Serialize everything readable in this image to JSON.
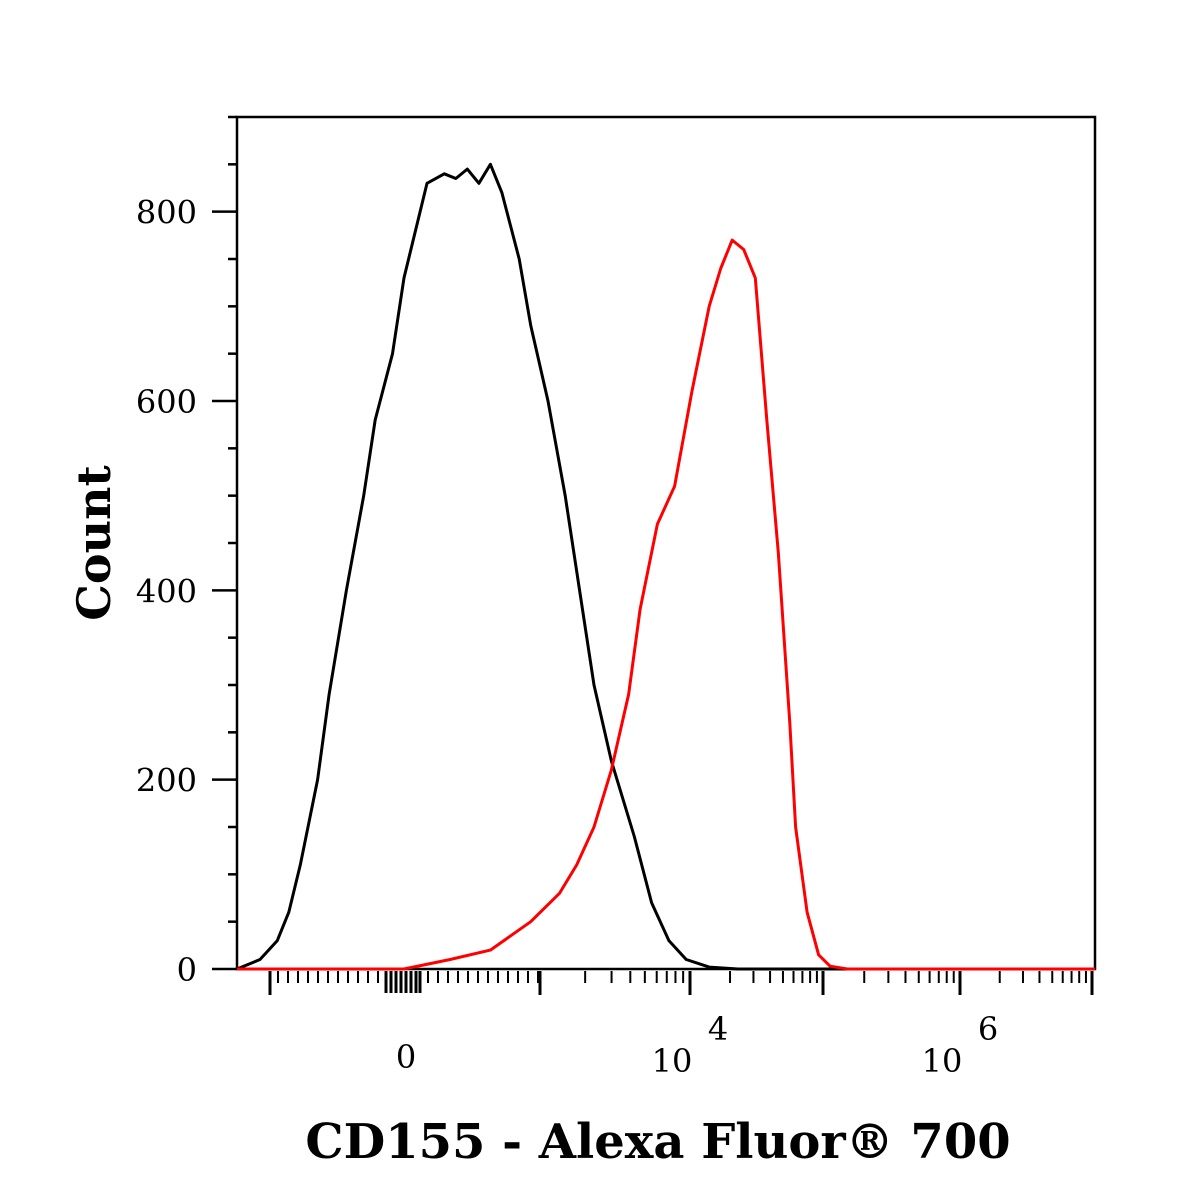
{
  "chart_data": {
    "type": "line",
    "title": "",
    "xlabel": "CD155 - Alexa Fluor® 700",
    "ylabel": "Count",
    "x_scale": "biexponential",
    "ylim": [
      0,
      900
    ],
    "y_ticks": [
      {
        "value": 0,
        "label": "0"
      },
      {
        "value": 200,
        "label": "200"
      },
      {
        "value": 400,
        "label": "400"
      },
      {
        "value": 600,
        "label": "600"
      },
      {
        "value": 800,
        "label": "800"
      }
    ],
    "x_ticks": [
      {
        "value": "0",
        "base": "0",
        "exp": ""
      },
      {
        "value": "10^4",
        "base": "10",
        "exp": "4"
      },
      {
        "value": "10^6",
        "base": "10",
        "exp": "6"
      }
    ],
    "grid": false,
    "legend": "none",
    "series": [
      {
        "color": "#000000",
        "points": [
          [
            -0.49,
            0
          ],
          [
            -0.45,
            10
          ],
          [
            -0.42,
            30
          ],
          [
            -0.4,
            60
          ],
          [
            -0.38,
            110
          ],
          [
            -0.35,
            200
          ],
          [
            -0.33,
            290
          ],
          [
            -0.3,
            400
          ],
          [
            -0.27,
            500
          ],
          [
            -0.25,
            580
          ],
          [
            -0.22,
            650
          ],
          [
            -0.2,
            730
          ],
          [
            -0.18,
            780
          ],
          [
            -0.16,
            830
          ],
          [
            -0.13,
            840
          ],
          [
            -0.11,
            835
          ],
          [
            -0.09,
            845
          ],
          [
            -0.07,
            830
          ],
          [
            -0.05,
            850
          ],
          [
            -0.03,
            820
          ],
          [
            0.0,
            750
          ],
          [
            0.02,
            680
          ],
          [
            0.05,
            600
          ],
          [
            0.08,
            500
          ],
          [
            0.1,
            420
          ],
          [
            0.13,
            300
          ],
          [
            0.16,
            220
          ],
          [
            0.2,
            140
          ],
          [
            0.23,
            70
          ],
          [
            0.26,
            30
          ],
          [
            0.29,
            10
          ],
          [
            0.33,
            2
          ],
          [
            0.38,
            0
          ],
          [
            1.0,
            0
          ]
        ]
      },
      {
        "color": "#ff0000",
        "points": [
          [
            -0.49,
            0
          ],
          [
            -0.2,
            0
          ],
          [
            -0.12,
            10
          ],
          [
            -0.05,
            20
          ],
          [
            0.02,
            50
          ],
          [
            0.07,
            80
          ],
          [
            0.1,
            110
          ],
          [
            0.13,
            150
          ],
          [
            0.16,
            210
          ],
          [
            0.19,
            290
          ],
          [
            0.21,
            380
          ],
          [
            0.24,
            470
          ],
          [
            0.27,
            510
          ],
          [
            0.3,
            610
          ],
          [
            0.33,
            700
          ],
          [
            0.35,
            740
          ],
          [
            0.37,
            770
          ],
          [
            0.39,
            760
          ],
          [
            0.41,
            730
          ],
          [
            0.43,
            580
          ],
          [
            0.45,
            440
          ],
          [
            0.47,
            260
          ],
          [
            0.48,
            150
          ],
          [
            0.5,
            60
          ],
          [
            0.52,
            15
          ],
          [
            0.54,
            3
          ],
          [
            0.57,
            0
          ],
          [
            1.0,
            0
          ]
        ]
      }
    ]
  }
}
